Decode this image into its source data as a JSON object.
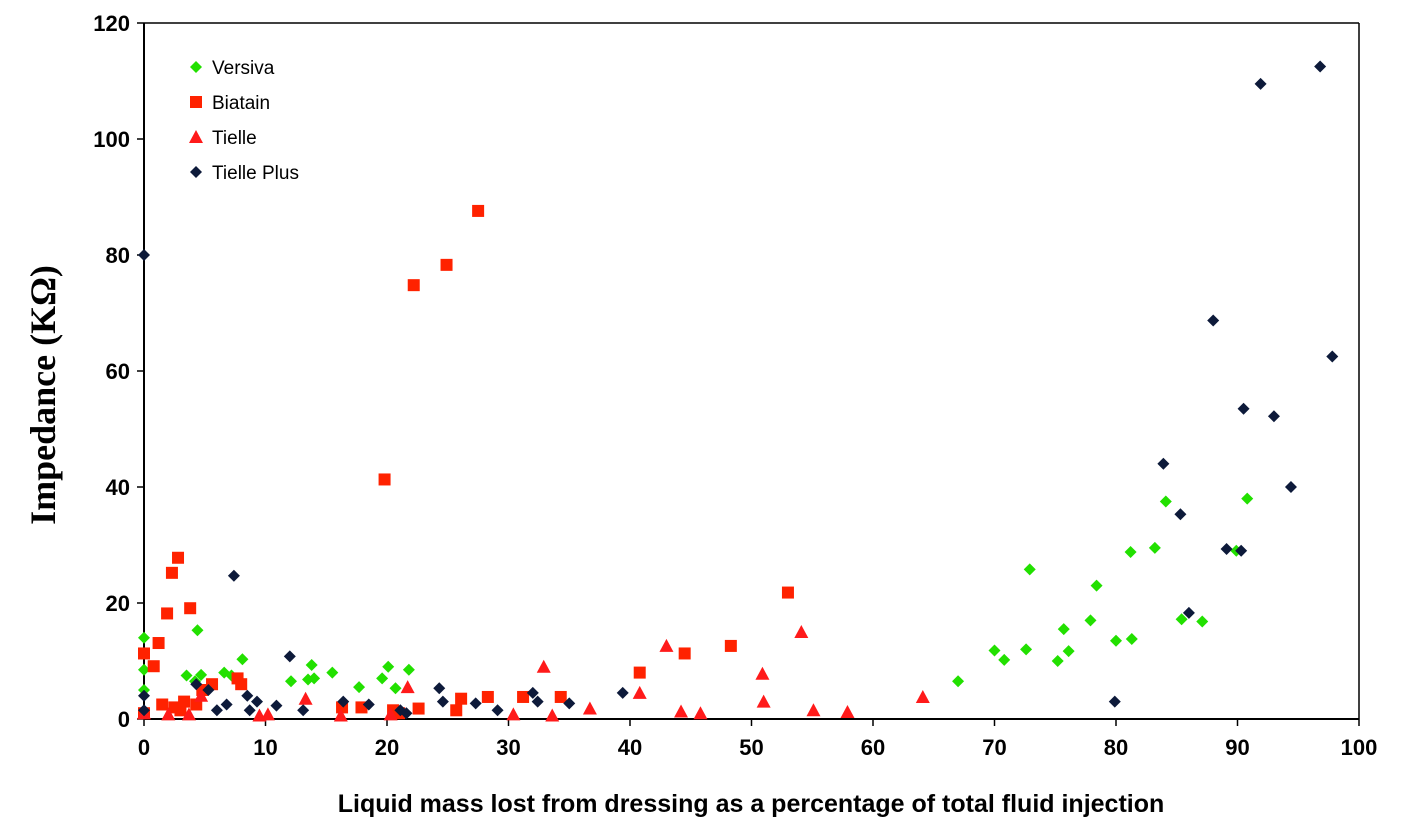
{
  "chart_data": {
    "type": "scatter",
    "title": "",
    "xlabel": "Liquid mass lost from dressing as a percentage of total fluid injection",
    "ylabel": "Impedance (KΩ)",
    "xlim": [
      0,
      100
    ],
    "ylim": [
      0,
      120
    ],
    "xticks": [
      0,
      10,
      20,
      30,
      40,
      50,
      60,
      70,
      80,
      90,
      100
    ],
    "yticks": [
      0,
      20,
      40,
      60,
      80,
      100,
      120
    ],
    "grid": false,
    "legend_position": "top-left",
    "series": [
      {
        "name": "Versiva",
        "marker": "diamond",
        "color": "#22e000",
        "points": [
          [
            0,
            14
          ],
          [
            0,
            8.5
          ],
          [
            0,
            5
          ],
          [
            3.5,
            7.5
          ],
          [
            4.2,
            6.5
          ],
          [
            4.4,
            15.3
          ],
          [
            4.7,
            7.6
          ],
          [
            6.6,
            8
          ],
          [
            7.2,
            7.5
          ],
          [
            8.1,
            10.3
          ],
          [
            12.1,
            6.5
          ],
          [
            13.5,
            6.8
          ],
          [
            13.8,
            9.3
          ],
          [
            14,
            7
          ],
          [
            15.5,
            8
          ],
          [
            17.7,
            5.5
          ],
          [
            19.6,
            7
          ],
          [
            20.1,
            9
          ],
          [
            20.7,
            5.3
          ],
          [
            21.8,
            8.5
          ],
          [
            67,
            6.5
          ],
          [
            70,
            11.8
          ],
          [
            70.8,
            10.2
          ],
          [
            72.6,
            12
          ],
          [
            72.9,
            25.8
          ],
          [
            75.2,
            10
          ],
          [
            75.7,
            15.5
          ],
          [
            76.1,
            11.7
          ],
          [
            77.9,
            17
          ],
          [
            78.4,
            23
          ],
          [
            80,
            13.5
          ],
          [
            81.2,
            28.8
          ],
          [
            81.3,
            13.8
          ],
          [
            83.2,
            29.5
          ],
          [
            84.1,
            37.5
          ],
          [
            85.4,
            17.2
          ],
          [
            87.1,
            16.8
          ],
          [
            89.9,
            29
          ],
          [
            90.8,
            38
          ]
        ]
      },
      {
        "name": "Biatain",
        "marker": "square",
        "color": "#ff2200",
        "points": [
          [
            0,
            11.3
          ],
          [
            0,
            1
          ],
          [
            0.8,
            9.1
          ],
          [
            1.2,
            13.1
          ],
          [
            1.5,
            2.5
          ],
          [
            1.9,
            18.2
          ],
          [
            2.3,
            25.2
          ],
          [
            2.8,
            27.8
          ],
          [
            2.5,
            2
          ],
          [
            3,
            1.5
          ],
          [
            3.3,
            3
          ],
          [
            3.8,
            19.1
          ],
          [
            4.3,
            2.5
          ],
          [
            4.8,
            5
          ],
          [
            5.6,
            6
          ],
          [
            7.7,
            7
          ],
          [
            8,
            6
          ],
          [
            16.3,
            2
          ],
          [
            17.9,
            2
          ],
          [
            19.8,
            41.3
          ],
          [
            20.5,
            1.5
          ],
          [
            21,
            1
          ],
          [
            22.2,
            74.8
          ],
          [
            22.6,
            1.8
          ],
          [
            24.9,
            78.3
          ],
          [
            25.7,
            1.5
          ],
          [
            26.1,
            3.5
          ],
          [
            27.5,
            87.6
          ],
          [
            28.3,
            3.8
          ],
          [
            31.2,
            3.8
          ],
          [
            34.3,
            3.8
          ],
          [
            40.8,
            8
          ],
          [
            44.5,
            11.3
          ],
          [
            48.3,
            12.6
          ],
          [
            53,
            21.8
          ]
        ]
      },
      {
        "name": "Tielle",
        "marker": "triangle",
        "color": "#ff1a1a",
        "points": [
          [
            0,
            1
          ],
          [
            2,
            0.8
          ],
          [
            3.7,
            0.8
          ],
          [
            4.7,
            4
          ],
          [
            9.5,
            0.6
          ],
          [
            10.2,
            0.8
          ],
          [
            13.3,
            3.5
          ],
          [
            16.2,
            0.6
          ],
          [
            20.3,
            0.8
          ],
          [
            21.7,
            5.5
          ],
          [
            30.4,
            0.8
          ],
          [
            32.9,
            9
          ],
          [
            33.6,
            0.6
          ],
          [
            36.7,
            1.8
          ],
          [
            40.8,
            4.5
          ],
          [
            43,
            12.6
          ],
          [
            44.2,
            1.3
          ],
          [
            45.8,
            1
          ],
          [
            50.9,
            7.8
          ],
          [
            51,
            3
          ],
          [
            54.1,
            15
          ],
          [
            55.1,
            1.5
          ],
          [
            57.9,
            1.2
          ],
          [
            64.1,
            3.8
          ]
        ]
      },
      {
        "name": "Tielle Plus",
        "marker": "diamond",
        "color": "#0d1a3a",
        "points": [
          [
            0,
            80
          ],
          [
            0,
            4
          ],
          [
            0,
            1.5
          ],
          [
            4.3,
            6
          ],
          [
            5.3,
            5
          ],
          [
            6,
            1.5
          ],
          [
            6.8,
            2.5
          ],
          [
            7.4,
            24.7
          ],
          [
            8.5,
            4
          ],
          [
            8.7,
            1.5
          ],
          [
            9.3,
            3
          ],
          [
            10.9,
            2.3
          ],
          [
            12,
            10.8
          ],
          [
            13.1,
            1.5
          ],
          [
            16.4,
            3
          ],
          [
            18.5,
            2.5
          ],
          [
            21.1,
            1.5
          ],
          [
            21.6,
            1
          ],
          [
            24.3,
            5.3
          ],
          [
            24.6,
            3
          ],
          [
            27.3,
            2.7
          ],
          [
            29.1,
            1.5
          ],
          [
            32,
            4.5
          ],
          [
            32.4,
            3
          ],
          [
            35,
            2.7
          ],
          [
            39.4,
            4.5
          ],
          [
            79.9,
            3
          ],
          [
            83.9,
            44
          ],
          [
            85.3,
            35.3
          ],
          [
            86,
            18.3
          ],
          [
            88,
            68.7
          ],
          [
            89.1,
            29.3
          ],
          [
            90.3,
            29
          ],
          [
            90.5,
            53.5
          ],
          [
            91.9,
            109.5
          ],
          [
            93,
            52.2
          ],
          [
            94.4,
            40
          ],
          [
            96.8,
            112.5
          ],
          [
            97.8,
            62.5
          ]
        ]
      }
    ]
  }
}
